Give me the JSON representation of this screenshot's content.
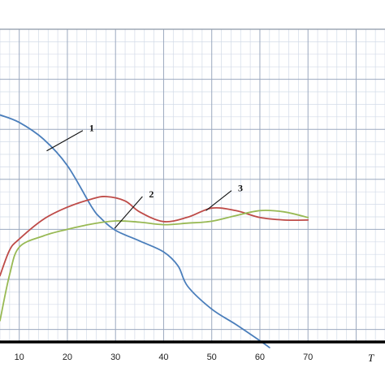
{
  "chart_data": {
    "type": "line",
    "xlabel": "T",
    "ylabel": "",
    "xlim": [
      6,
      86
    ],
    "ylim": [
      0,
      1
    ],
    "x_ticks": [
      10,
      20,
      30,
      40,
      50,
      60,
      70
    ],
    "grid": true,
    "legend": "none",
    "colors": {
      "series_1": "#4a7ebb",
      "series_2": "#be4b48",
      "series_3": "#98b954",
      "grid_major": "#9ba9bf",
      "grid_minor": "#d3dbe8",
      "axis": "#000000"
    },
    "series": [
      {
        "label": "1",
        "label_anchor": [
          15.7,
          0.611
        ],
        "label_at": [
          23.2,
          0.676
        ],
        "points": [
          [
            6,
            0.726
          ],
          [
            10,
            0.702
          ],
          [
            15,
            0.649
          ],
          [
            20,
            0.564
          ],
          [
            25,
            0.433
          ],
          [
            27,
            0.395
          ],
          [
            30,
            0.357
          ],
          [
            35,
            0.323
          ],
          [
            40,
            0.288
          ],
          [
            43,
            0.243
          ],
          [
            45,
            0.178
          ],
          [
            50,
            0.105
          ],
          [
            55,
            0.056
          ],
          [
            60,
            0.004
          ],
          [
            62,
            -0.018
          ]
        ]
      },
      {
        "label": "2",
        "label_anchor": [
          29.8,
          0.363
        ],
        "label_at": [
          35.6,
          0.465
        ],
        "points": [
          [
            6,
            0.212
          ],
          [
            8,
            0.294
          ],
          [
            10,
            0.329
          ],
          [
            15,
            0.392
          ],
          [
            20,
            0.431
          ],
          [
            25,
            0.457
          ],
          [
            28,
            0.465
          ],
          [
            32,
            0.451
          ],
          [
            35,
            0.416
          ],
          [
            40,
            0.385
          ],
          [
            45,
            0.399
          ],
          [
            50,
            0.428
          ],
          [
            55,
            0.42
          ],
          [
            60,
            0.398
          ],
          [
            65,
            0.39
          ],
          [
            70,
            0.39
          ]
        ]
      },
      {
        "label": "3",
        "label_anchor": [
          48.8,
          0.42
        ],
        "label_at": [
          54.1,
          0.484
        ],
        "points": [
          [
            6,
            0.068
          ],
          [
            8,
            0.216
          ],
          [
            10,
            0.303
          ],
          [
            15,
            0.339
          ],
          [
            20,
            0.36
          ],
          [
            25,
            0.377
          ],
          [
            30,
            0.387
          ],
          [
            35,
            0.383
          ],
          [
            40,
            0.375
          ],
          [
            45,
            0.38
          ],
          [
            50,
            0.386
          ],
          [
            55,
            0.404
          ],
          [
            60,
            0.42
          ],
          [
            65,
            0.416
          ],
          [
            70,
            0.398
          ]
        ]
      }
    ]
  }
}
